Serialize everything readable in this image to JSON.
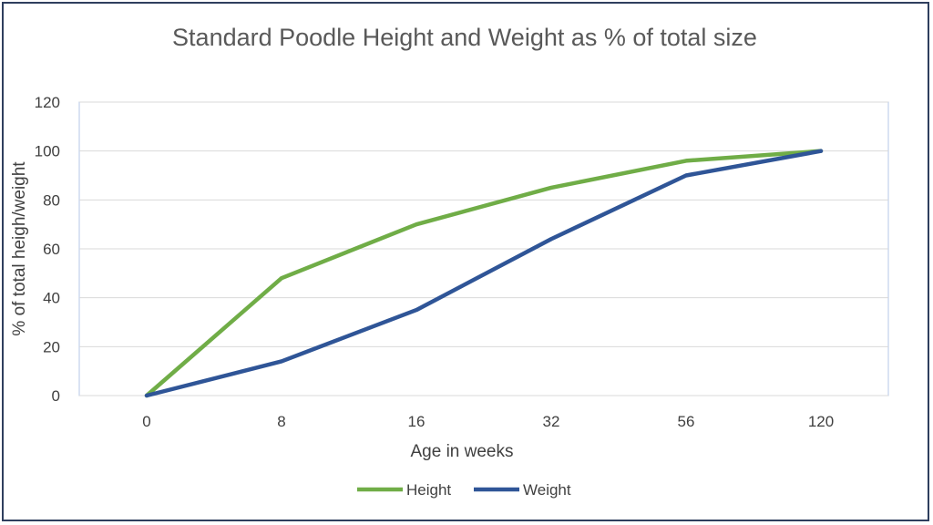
{
  "chart_data": {
    "type": "line",
    "title": "Standard Poodle Height and Weight as % of total size",
    "xlabel": "Age in weeks",
    "ylabel": "% of total heigh/weight",
    "categories": [
      "0",
      "8",
      "16",
      "32",
      "56",
      "120"
    ],
    "ylim": [
      0,
      120
    ],
    "yticks": [
      "0",
      "20",
      "40",
      "60",
      "80",
      "100",
      "120"
    ],
    "grid": true,
    "legend_position": "bottom",
    "series": [
      {
        "name": "Height",
        "color": "#70ad47",
        "values": [
          0,
          48,
          70,
          85,
          96,
          100
        ]
      },
      {
        "name": "Weight",
        "color": "#2f5597",
        "values": [
          0,
          14,
          35,
          64,
          90,
          100
        ]
      }
    ]
  }
}
